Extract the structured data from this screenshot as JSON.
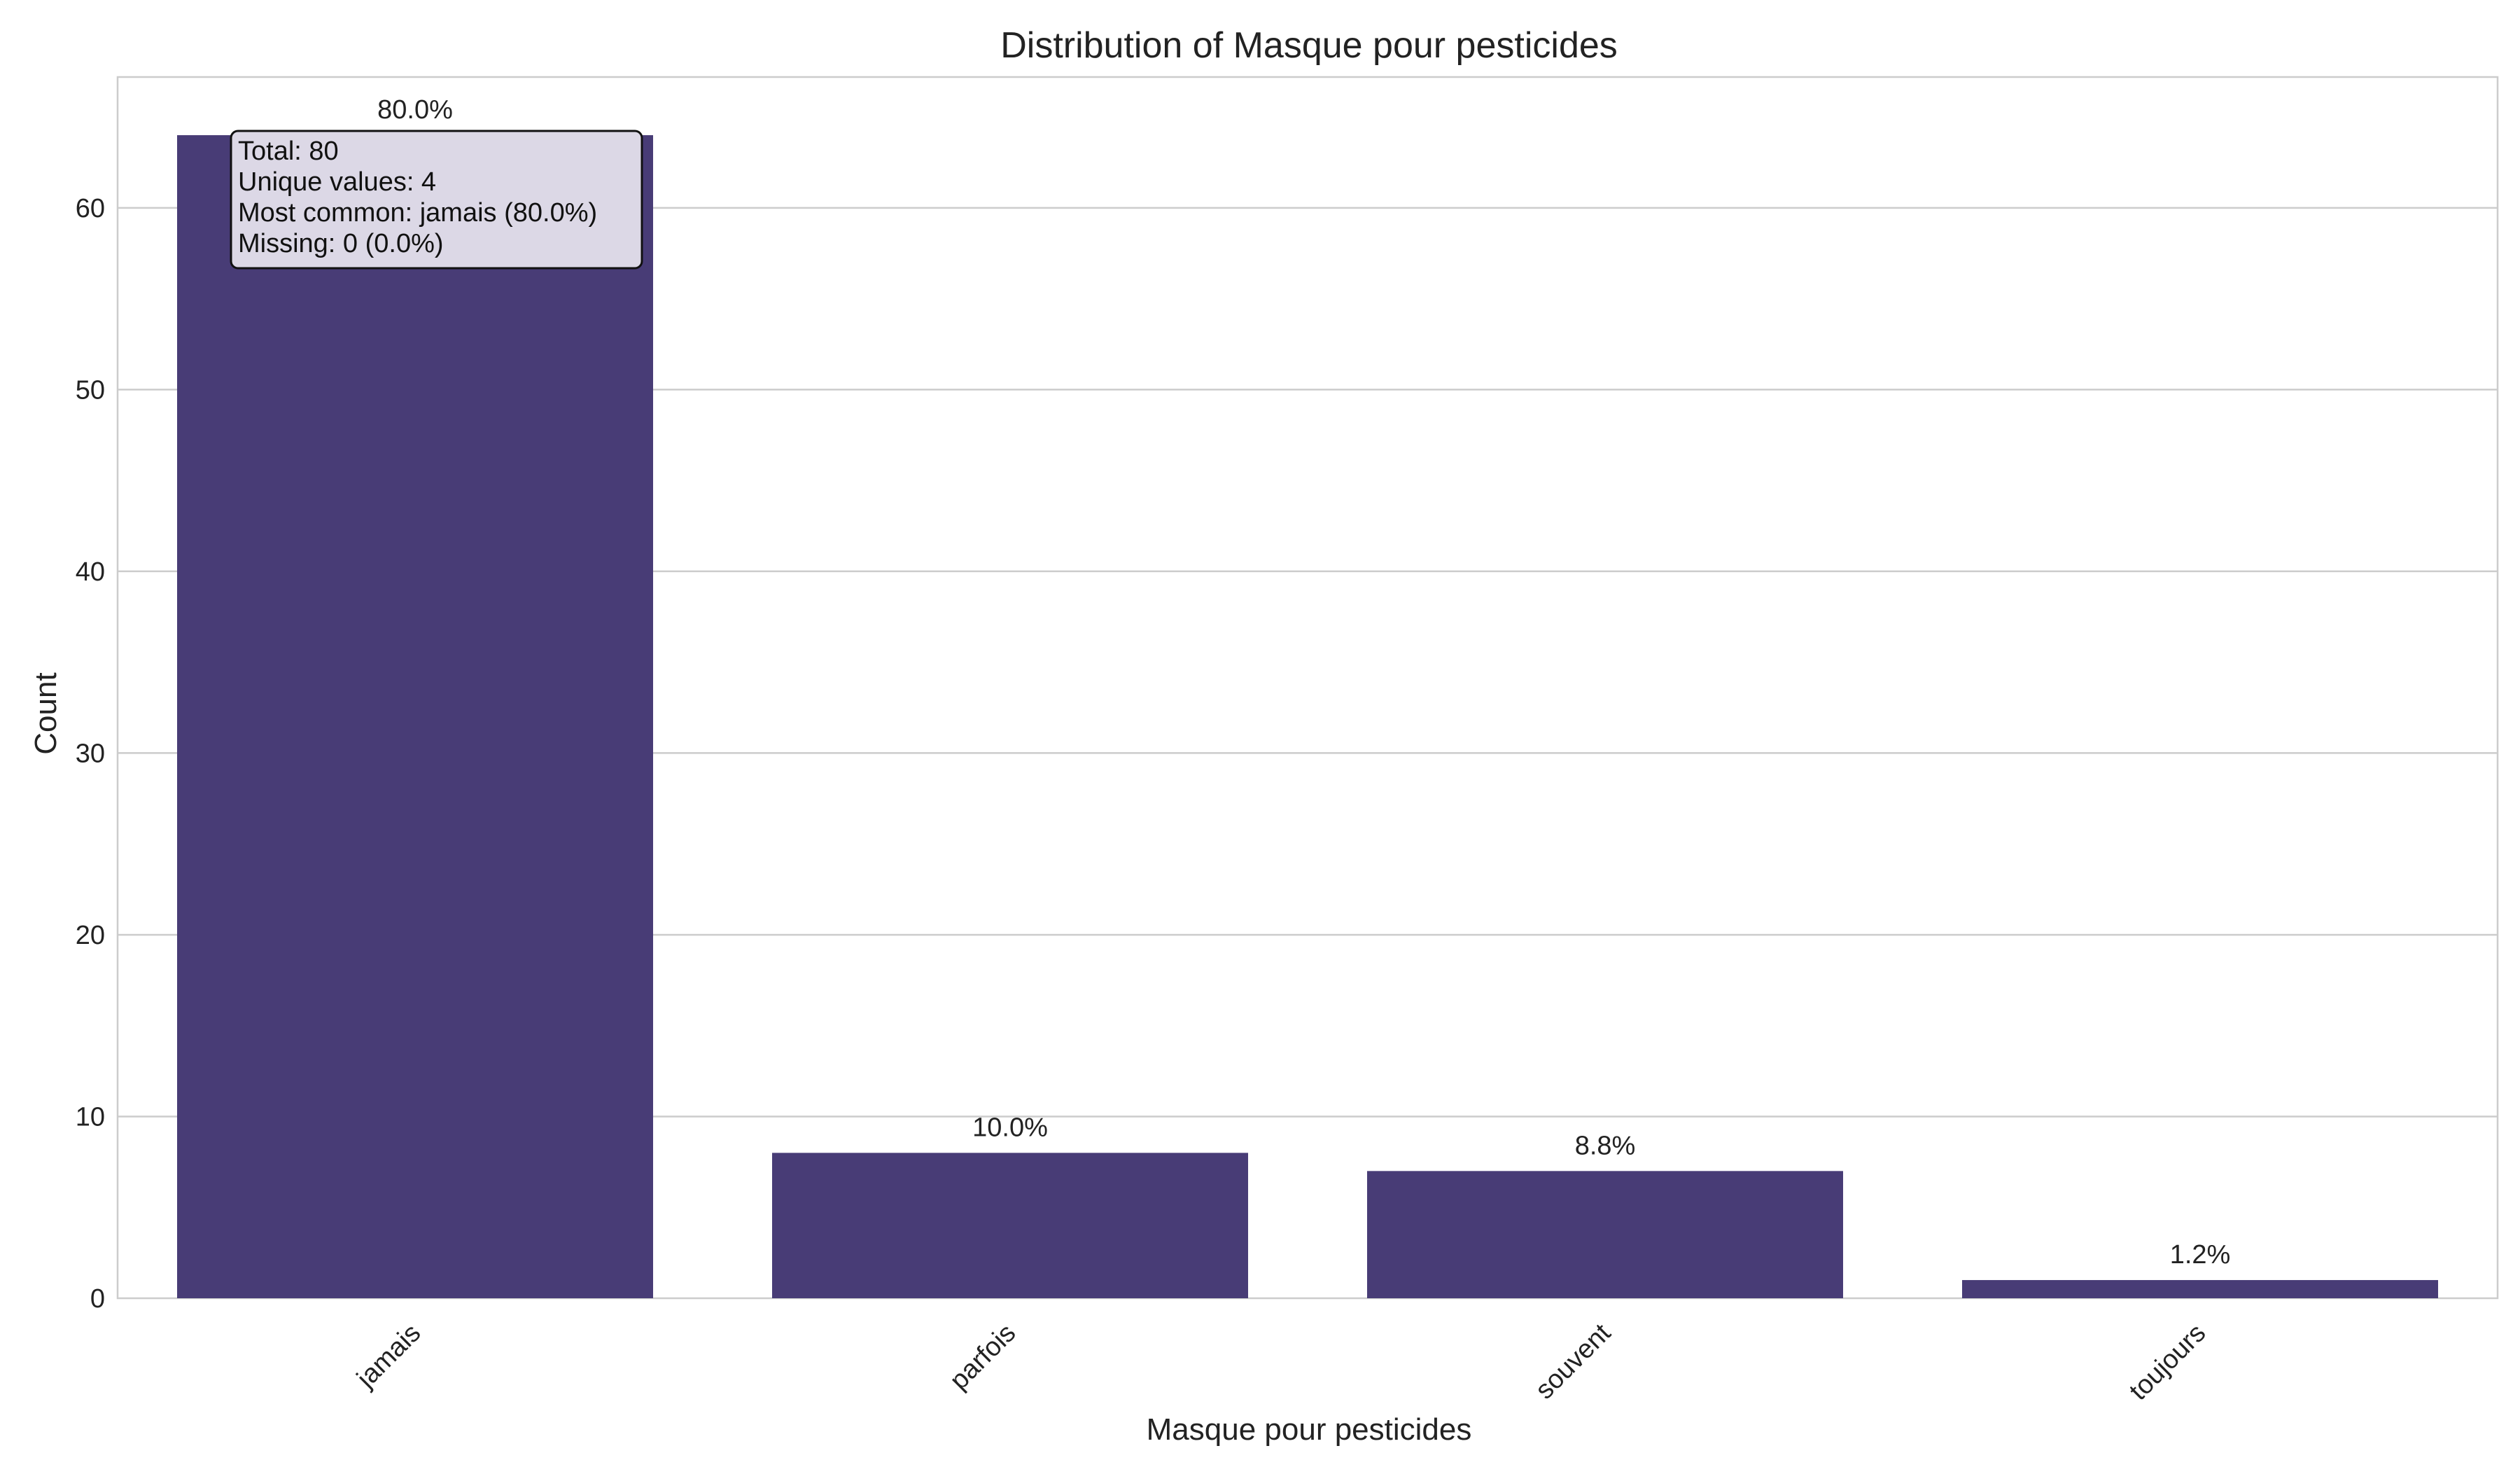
{
  "chart_data": {
    "type": "bar",
    "title": "Distribution of Masque pour pesticides",
    "xlabel": "Masque pour pesticides",
    "ylabel": "Count",
    "categories": [
      "jamais",
      "parfois",
      "souvent",
      "toujours"
    ],
    "values": [
      64,
      8,
      7,
      1
    ],
    "percent_labels": [
      "80.0%",
      "10.0%",
      "8.8%",
      "1.2%"
    ],
    "ylim": [
      0,
      67.2
    ],
    "yticks": [
      0,
      10,
      20,
      30,
      40,
      50,
      60
    ],
    "grid": true,
    "bar_color": "#483c76",
    "stats_box": {
      "lines": [
        "Total: 80",
        "Unique values: 4",
        "Most common: jamais (80.0%)",
        "Missing: 0 (0.0%)"
      ]
    }
  }
}
